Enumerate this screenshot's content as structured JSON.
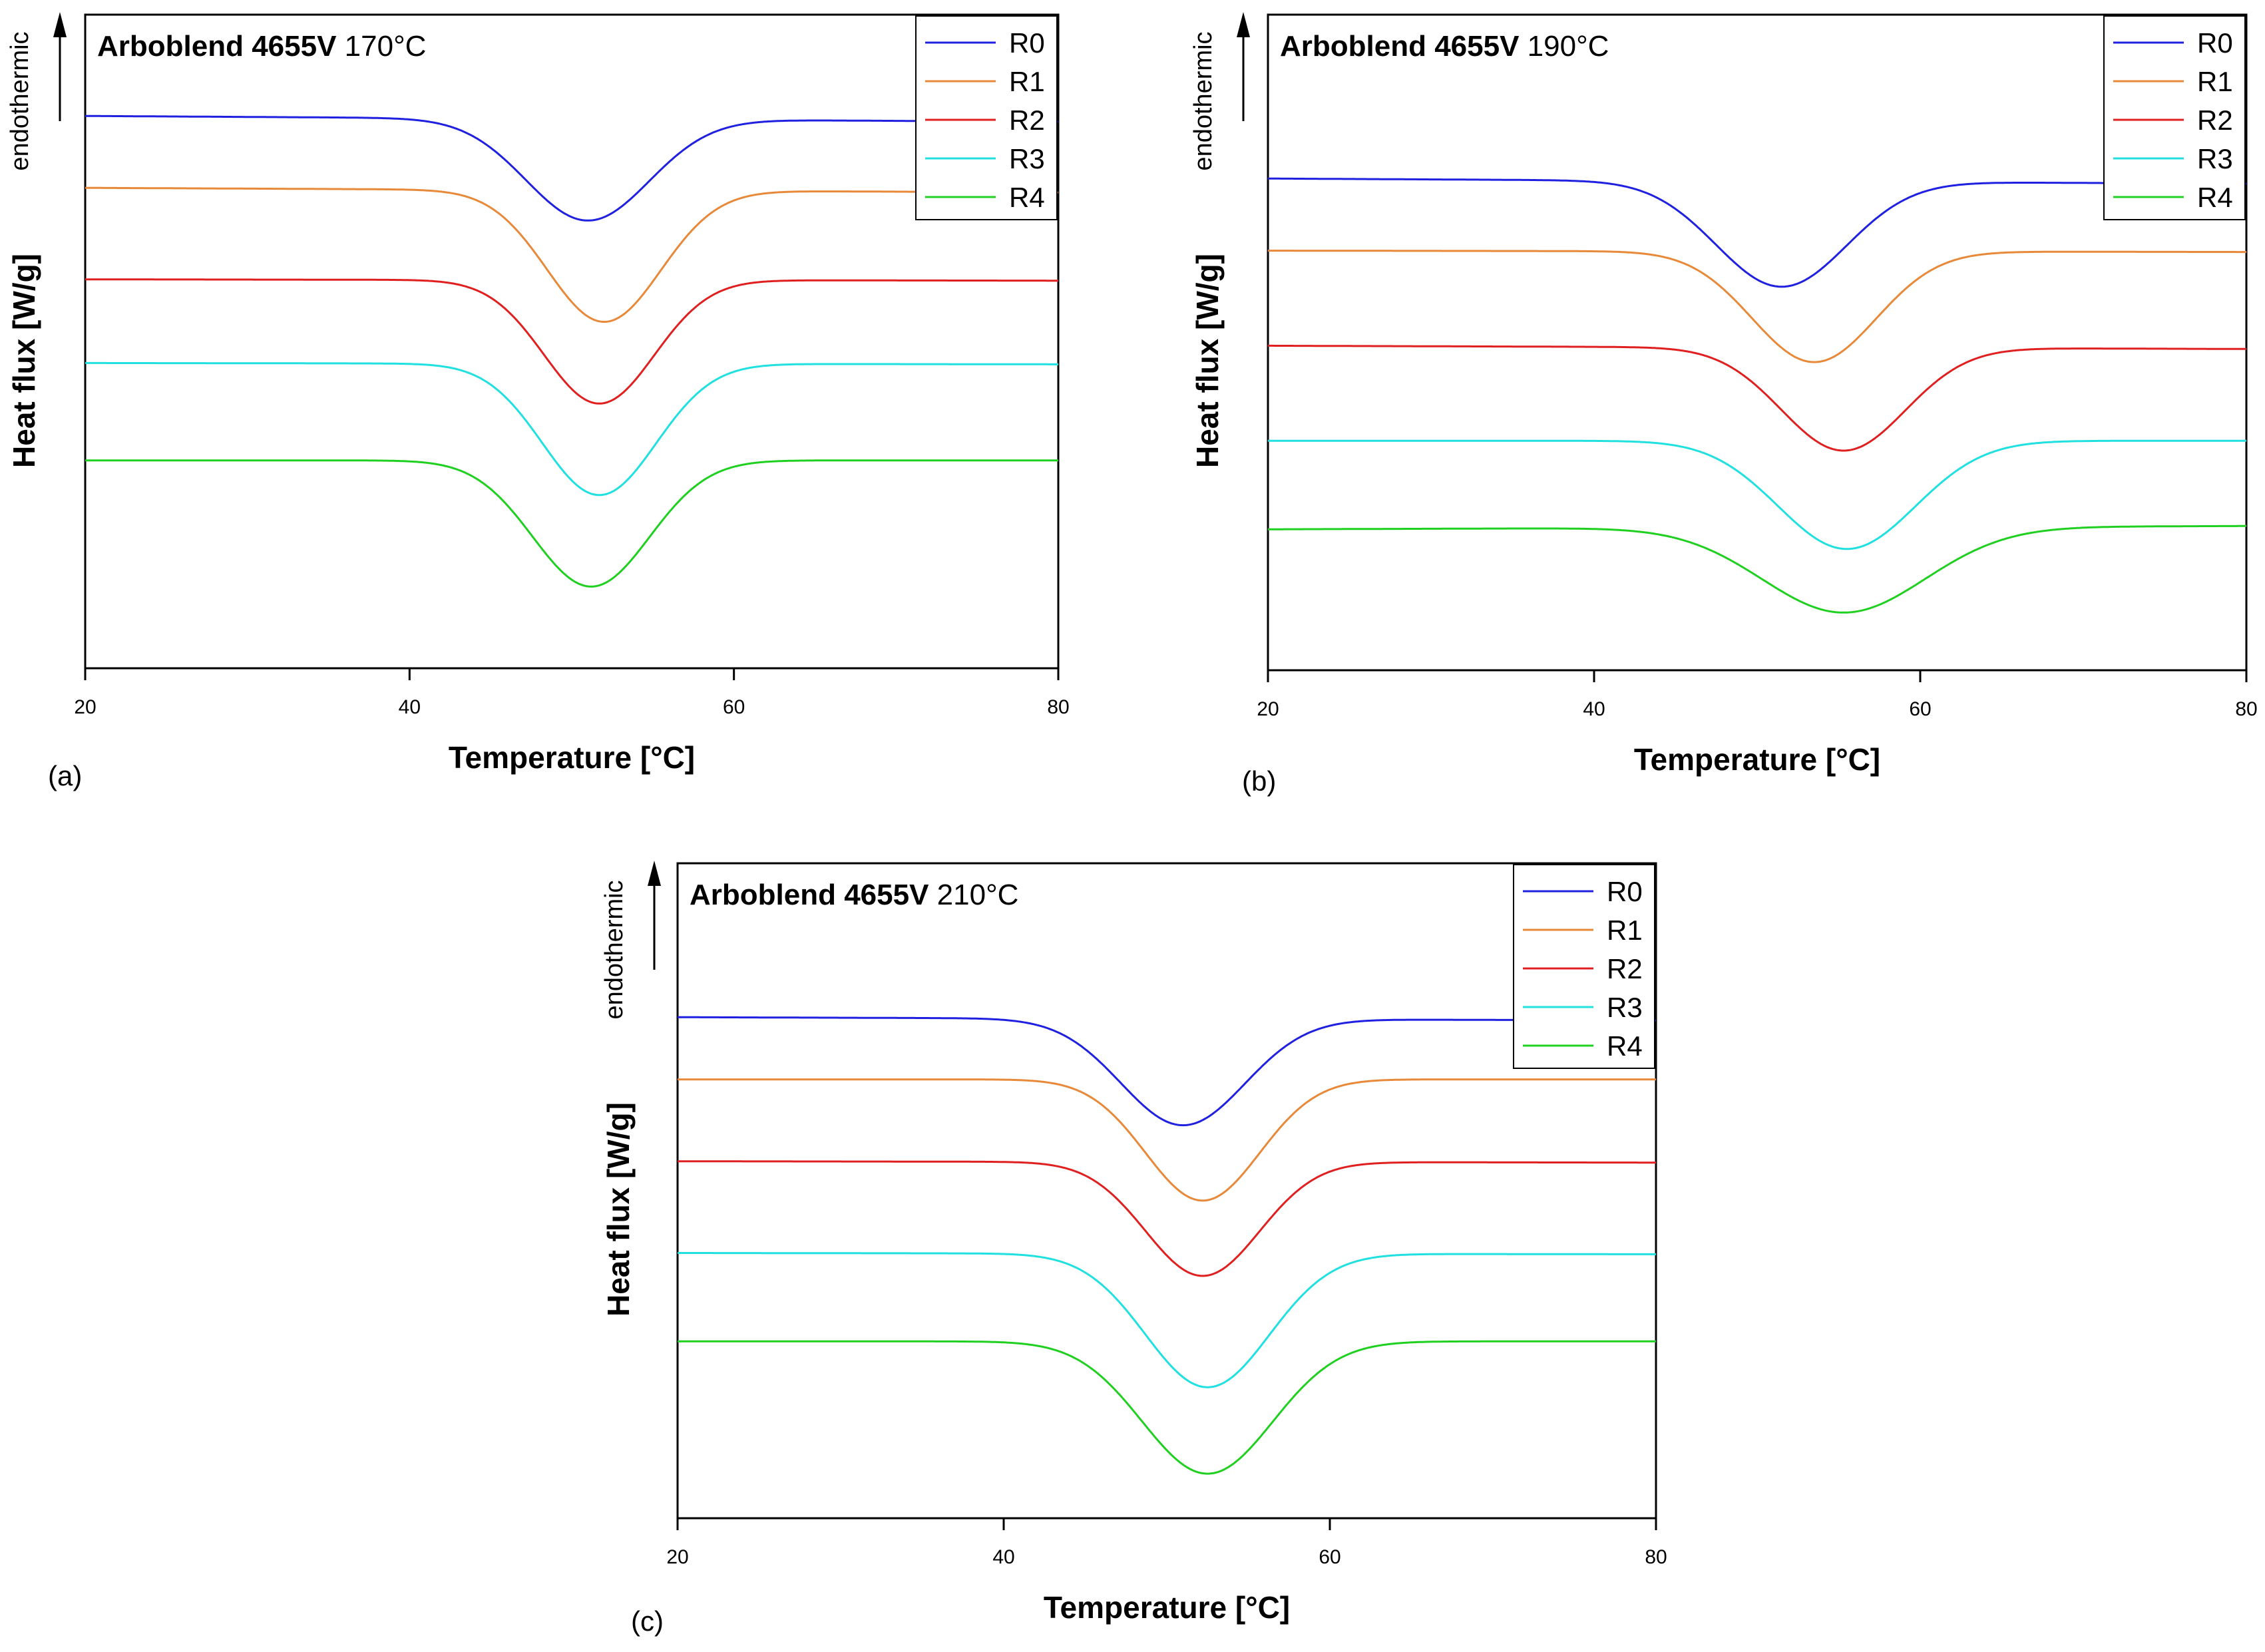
{
  "panels": [
    {
      "label": "(a)",
      "title_bold": "Arboblend 4655V",
      "title_temp": "170°C",
      "indicator": "endothermic"
    },
    {
      "label": "(b)",
      "title_bold": "Arboblend 4655V",
      "title_temp": "190°C",
      "indicator": "endothermic"
    },
    {
      "label": "(c)",
      "title_bold": "Arboblend 4655V",
      "title_temp": "210°C",
      "indicator": "endothermic"
    }
  ],
  "chart_data": [
    {
      "type": "line",
      "title": "Arboblend 4655V 170°C",
      "xlabel": "Temperature [°C]",
      "ylabel": "Heat flux [W/g]",
      "xlim": [
        20,
        80
      ],
      "ylim": [
        0,
        100
      ],
      "x_ticks": [
        20,
        40,
        60,
        80
      ],
      "legend_position": "top-right",
      "grid": false,
      "series": [
        {
          "name": "R0",
          "color": "#2020e0",
          "baseline_left": 84.5,
          "baseline_right": 83.6,
          "peak_x": 51.0,
          "peak_y": 68.5,
          "half_width": 3.8
        },
        {
          "name": "R1",
          "color": "#e8893a",
          "baseline_left": 73.5,
          "baseline_right": 72.8,
          "peak_x": 52.0,
          "peak_y": 53.0,
          "half_width": 3.5
        },
        {
          "name": "R2",
          "color": "#e02020",
          "baseline_left": 59.5,
          "baseline_right": 59.3,
          "peak_x": 51.7,
          "peak_y": 40.5,
          "half_width": 3.4
        },
        {
          "name": "R3",
          "color": "#20e0e0",
          "baseline_left": 46.7,
          "baseline_right": 46.5,
          "peak_x": 51.7,
          "peak_y": 26.5,
          "half_width": 3.5
        },
        {
          "name": "R4",
          "color": "#20d020",
          "baseline_left": 31.8,
          "baseline_right": 31.8,
          "peak_x": 51.2,
          "peak_y": 12.5,
          "half_width": 3.6
        }
      ]
    },
    {
      "type": "line",
      "title": "Arboblend 4655V 190°C",
      "xlabel": "Temperature [°C]",
      "ylabel": "Heat flux [W/g]",
      "xlim": [
        20,
        80
      ],
      "ylim": [
        0,
        100
      ],
      "x_ticks": [
        20,
        40,
        60,
        80
      ],
      "legend_position": "top-right",
      "grid": false,
      "series": [
        {
          "name": "R0",
          "color": "#2020e0",
          "baseline_left": 75.0,
          "baseline_right": 74.2,
          "peak_x": 51.5,
          "peak_y": 58.5,
          "half_width": 4.0
        },
        {
          "name": "R1",
          "color": "#e8893a",
          "baseline_left": 64.0,
          "baseline_right": 63.8,
          "peak_x": 53.5,
          "peak_y": 47.0,
          "half_width": 3.8
        },
        {
          "name": "R2",
          "color": "#e02020",
          "baseline_left": 49.5,
          "baseline_right": 49.0,
          "peak_x": 55.3,
          "peak_y": 33.5,
          "half_width": 3.8
        },
        {
          "name": "R3",
          "color": "#20e0e0",
          "baseline_left": 35.0,
          "baseline_right": 35.0,
          "peak_x": 55.5,
          "peak_y": 18.5,
          "half_width": 4.2
        },
        {
          "name": "R4",
          "color": "#20d020",
          "baseline_left": 21.5,
          "baseline_right": 22.0,
          "peak_x": 55.3,
          "peak_y": 8.8,
          "half_width": 5.0
        }
      ]
    },
    {
      "type": "line",
      "title": "Arboblend 4655V 210°C",
      "xlabel": "Temperature [°C]",
      "ylabel": "Heat flux [W/g]",
      "xlim": [
        20,
        80
      ],
      "ylim": [
        0,
        100
      ],
      "x_ticks": [
        20,
        40,
        60,
        80
      ],
      "legend_position": "top-right",
      "grid": false,
      "series": [
        {
          "name": "R0",
          "color": "#2020e0",
          "baseline_left": 76.5,
          "baseline_right": 76.0,
          "peak_x": 51.0,
          "peak_y": 60.0,
          "half_width": 3.8
        },
        {
          "name": "R1",
          "color": "#e8893a",
          "baseline_left": 67.0,
          "baseline_right": 67.0,
          "peak_x": 52.2,
          "peak_y": 48.5,
          "half_width": 3.5
        },
        {
          "name": "R2",
          "color": "#e02020",
          "baseline_left": 54.5,
          "baseline_right": 54.3,
          "peak_x": 52.2,
          "peak_y": 37.0,
          "half_width": 3.5
        },
        {
          "name": "R3",
          "color": "#20e0e0",
          "baseline_left": 40.5,
          "baseline_right": 40.3,
          "peak_x": 52.5,
          "peak_y": 20.0,
          "half_width": 3.8
        },
        {
          "name": "R4",
          "color": "#20d020",
          "baseline_left": 27.0,
          "baseline_right": 27.0,
          "peak_x": 52.5,
          "peak_y": 6.8,
          "half_width": 4.0
        }
      ]
    }
  ]
}
